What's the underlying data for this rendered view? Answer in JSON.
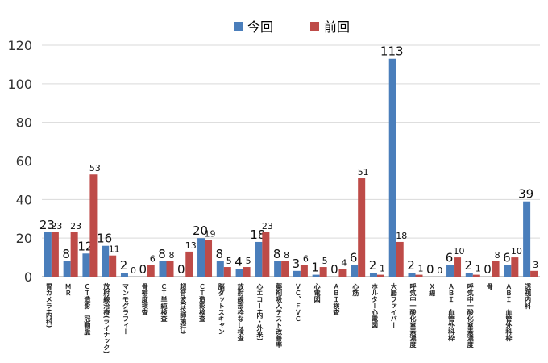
{
  "chart_data": {
    "type": "bar",
    "title": "",
    "xlabel": "",
    "ylabel": "",
    "ylim": [
      0,
      120
    ],
    "yticks": [
      0,
      20,
      40,
      60,
      80,
      100,
      120
    ],
    "grid": true,
    "legend_position": "top",
    "categories": [
      "胃カメラ(内科)",
      "ＭＲ",
      "ＣＴ造影　冠動脈",
      "放射線治療(ライナック)",
      "マンモグラフィー",
      "骨密度検査",
      "ＣＴ単純検査",
      "超音波(技師施行)",
      "ＣＴ造影検査",
      "脳ダットスキャン",
      "放射線部枠なし検査",
      "心エコー(内・外来)",
      "薬剤吸入テスト改善率",
      "ＶＣ、ＦＶＣ",
      "心電図",
      "ＡＢＩ検査",
      "心筋",
      "ホルター心電図",
      "大腸ファイバー",
      "呼気中一酸化窒素濃度",
      "Ｘ線",
      "ＡＢＩ　血管外科枠",
      "呼気中一酸化窒素濃度",
      "骨",
      "ＡＢＩ　血管外科枠",
      "透視内科"
    ],
    "series": [
      {
        "name": "今回",
        "color": "#4a7ebb",
        "values": [
          23,
          8,
          12,
          16,
          2,
          0,
          8,
          0,
          20,
          8,
          4,
          18,
          8,
          3,
          1,
          0,
          6,
          2,
          113,
          2,
          0,
          6,
          2,
          0,
          6,
          39
        ]
      },
      {
        "name": "前回",
        "color": "#be4b48",
        "values": [
          23,
          23,
          53,
          11,
          0,
          6,
          8,
          13,
          19,
          5,
          5,
          23,
          8,
          6,
          5,
          4,
          51,
          1,
          18,
          1,
          0,
          10,
          1,
          8,
          10,
          3
        ]
      }
    ]
  }
}
